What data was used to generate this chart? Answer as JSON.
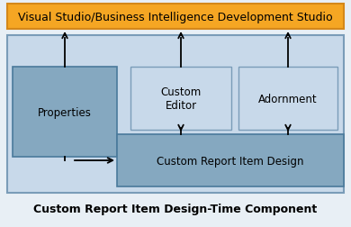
{
  "title": "Custom Report Item Design-Time Component",
  "vs_label": "Visual Studio/Business Intelligence Development Studio",
  "vs_bg": "#F5A623",
  "vs_border": "#D4881A",
  "outer_bg": "#C8D9EA",
  "outer_border": "#7A9CB8",
  "properties_bg": "#85A8C0",
  "properties_border": "#4A7A9B",
  "custom_editor_bg": "#C8D9EA",
  "custom_editor_border": "#7A9CB8",
  "custom_editor_label": "Custom\nEditor",
  "adornment_bg": "#C8D9EA",
  "adornment_border": "#7A9CB8",
  "design_bg": "#85A8C0",
  "design_border": "#4A7A9B",
  "design_label": "Custom Report Item Design",
  "title_fontsize": 9,
  "label_fontsize": 8.5,
  "vs_fontsize": 9,
  "fig_bg": "#E8EFF5"
}
